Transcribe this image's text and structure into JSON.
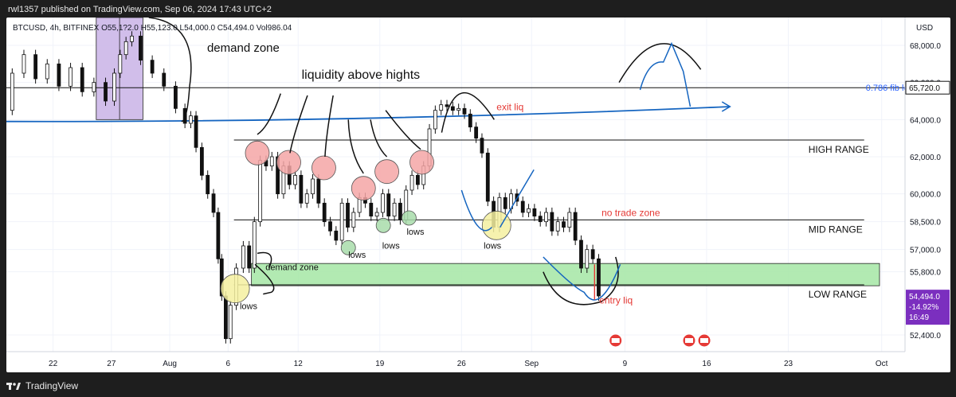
{
  "header": {
    "published": "rwl1357 published on TradingView.com, Sep 06, 2024 17:43 UTC+2"
  },
  "footer": {
    "brand": "TradingView",
    "logo_icon": "tradingview-logo-icon"
  },
  "colors": {
    "up": "#111111",
    "candle_fill": "#ffffff",
    "annotation": "#111111",
    "red_text": "#e53935",
    "blue": "#1565c0",
    "fib": "#2962ff",
    "zone_green": "#a5e6a5",
    "zone_purple": "#c9b3e6",
    "circle_red": "#f4a6a6",
    "circle_yellow": "#f5f0a0",
    "circle_green": "#a8dcaa",
    "price_tag": "#7b2fbf"
  },
  "chart_data": {
    "type": "line",
    "symbol_line": "BTCUSD, 4h, BITFINEX O55,1?2.0 H55,123.0 L54,000.0 C54,494.0 Vol986.04",
    "ylabel_unit": "USD",
    "ylim": [
      51500,
      69500
    ],
    "y_ticks": [
      "68,000.0",
      "66,000.0",
      "64,000.0",
      "62,000.0",
      "60,000.0",
      "58,500.0",
      "57,000.0",
      "55,800.0",
      "52,400.0"
    ],
    "y_tick_values": [
      68000,
      66000,
      64000,
      62000,
      60000,
      58500,
      57000,
      55800,
      52400
    ],
    "x_ticks": [
      "22",
      "27",
      "Aug",
      "6",
      "12",
      "19",
      "26",
      "Sep",
      "9",
      "16",
      "23",
      "Oct"
    ],
    "x_tick_days": [
      -10,
      -5,
      0,
      5,
      11,
      18,
      25,
      31,
      39,
      46,
      53,
      61
    ],
    "xlim_days": [
      -14,
      63
    ],
    "price_line": {
      "days": [
        -14,
        -13,
        -12,
        -11,
        -10,
        -9,
        -8,
        -7,
        -6,
        -5,
        -4.5,
        -4,
        -3.5,
        -3,
        -2,
        -1,
        0,
        1,
        1.6,
        2,
        2.5,
        3,
        3.5,
        4,
        4.3,
        4.6,
        5,
        5.4,
        6,
        6.6,
        7,
        7.5,
        8,
        8.5,
        9,
        9.5,
        10,
        10.5,
        11,
        11.5,
        12,
        12.5,
        13,
        13.5,
        14,
        14.5,
        15,
        15.5,
        16,
        16.5,
        17,
        17.5,
        18,
        18.5,
        19,
        19.5,
        20,
        20.5,
        21,
        21.5,
        22,
        22.5,
        23,
        23.5,
        24,
        24.5,
        25,
        25.5,
        26,
        26.5,
        27,
        27.5,
        28,
        28.5,
        29,
        29.5,
        30,
        30.5,
        31,
        31.5,
        32,
        32.5,
        33,
        33.5,
        34,
        34.5,
        35,
        35.5,
        36,
        36.5,
        37
      ],
      "prices": [
        64500,
        66500,
        67500,
        66200,
        67000,
        65800,
        66800,
        65500,
        66000,
        65000,
        66500,
        67500,
        68200,
        68500,
        67200,
        66500,
        65800,
        64600,
        63800,
        64200,
        62500,
        61000,
        60000,
        59000,
        56500,
        54500,
        52200,
        54000,
        56000,
        57200,
        56000,
        58500,
        61800,
        61500,
        62000,
        60000,
        61500,
        60500,
        61000,
        59500,
        60000,
        60800,
        59500,
        58500,
        58000,
        57500,
        59500,
        58200,
        59000,
        59800,
        59500,
        58800,
        59000,
        60000,
        58800,
        59500,
        58600,
        60200,
        61000,
        60500,
        61500,
        63500,
        64500,
        64800,
        64700,
        64500,
        64600,
        64300,
        63600,
        63000,
        62200,
        59600,
        58200,
        59800,
        59200,
        60000,
        59600,
        59000,
        59200,
        58800,
        58500,
        59000,
        58000,
        58500,
        58200,
        59000,
        57500,
        56000,
        57000,
        56500,
        54500
      ]
    },
    "levels": [
      {
        "label": "0.786 fib level",
        "value": 65720,
        "tag": "65,720.0"
      },
      {
        "label": "HIGH RANGE",
        "value": 62900
      },
      {
        "label": "MID RANGE",
        "value": 58600
      },
      {
        "label": "LOW RANGE",
        "value": 55100
      }
    ],
    "current_price": {
      "value": 54494,
      "tag": "54,494.0",
      "change": "-14.92%",
      "countdown": "16:49"
    },
    "zones": [
      {
        "label": "demand zone",
        "from_day": 7,
        "to_day": 64,
        "low": 55050,
        "high": 56250,
        "color": "#a5e6a5"
      },
      {
        "label": "",
        "from_day": -6.3,
        "to_day": -2.3,
        "low": 64000,
        "high": 69500,
        "color": "#c9b3e6"
      }
    ],
    "trendline": {
      "from": [
        -14,
        63900
      ],
      "to": [
        48,
        64700
      ]
    },
    "annotations": [
      {
        "text": "demand zone",
        "day": 3.2,
        "price": 67650,
        "size": 15
      },
      {
        "text": "liquidity above hights",
        "day": 11.3,
        "price": 66200,
        "size": 16
      },
      {
        "text": "exit liq",
        "day": 28,
        "price": 64500,
        "size": 12,
        "color": "#e53935"
      },
      {
        "text": "no trade zone",
        "day": 37,
        "price": 58800,
        "size": 12,
        "color": "#e53935"
      },
      {
        "text": "entry liq",
        "day": 36.8,
        "price": 54100,
        "size": 12,
        "color": "#e53935"
      },
      {
        "text": "demand zone",
        "day": 8.2,
        "price": 55900,
        "size": 11
      },
      {
        "text": "lows",
        "day": 6,
        "price": 53800,
        "size": 11
      },
      {
        "text": "lows",
        "day": 15.3,
        "price": 56550,
        "size": 11
      },
      {
        "text": "lows",
        "day": 18.2,
        "price": 57050,
        "size": 11
      },
      {
        "text": "lows",
        "day": 20.3,
        "price": 57800,
        "size": 11
      },
      {
        "text": "lows",
        "day": 26.9,
        "price": 57050,
        "size": 11
      }
    ],
    "circles": [
      {
        "day": 7.5,
        "price": 62200,
        "kind": "red"
      },
      {
        "day": 10.2,
        "price": 61700,
        "kind": "red"
      },
      {
        "day": 13.2,
        "price": 61400,
        "kind": "red"
      },
      {
        "day": 16.6,
        "price": 60300,
        "kind": "red"
      },
      {
        "day": 18.6,
        "price": 61200,
        "kind": "red"
      },
      {
        "day": 21.6,
        "price": 61700,
        "kind": "red"
      },
      {
        "day": 28,
        "price": 58300,
        "kind": "yellow"
      },
      {
        "day": 5.6,
        "price": 54900,
        "kind": "yellow"
      },
      {
        "day": 15.3,
        "price": 57100,
        "kind": "green"
      },
      {
        "day": 18.3,
        "price": 58300,
        "kind": "green"
      },
      {
        "day": 20.5,
        "price": 58700,
        "kind": "green"
      }
    ],
    "events_days": [
      38.2,
      44.5,
      45.8
    ]
  }
}
